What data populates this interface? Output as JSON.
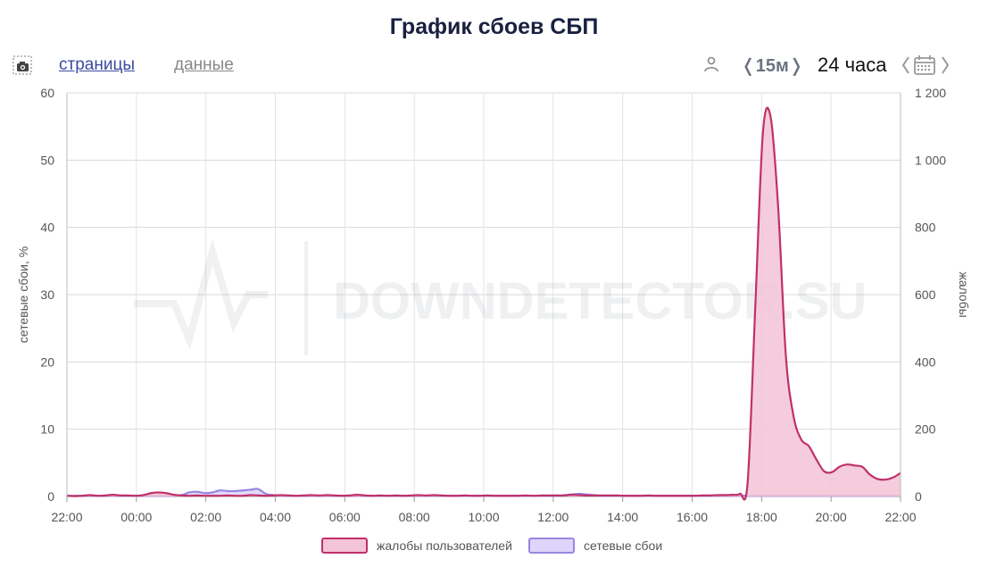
{
  "header": {
    "title": "График сбоев СБП"
  },
  "toolbar": {
    "camera_icon": "camera-icon",
    "link_pages": "страницы",
    "link_data": "данные",
    "user_icon": "user-icon",
    "interval": "❬15м❭",
    "range": "24 часа",
    "calendar_icon": "calendar-icon"
  },
  "watermark": "DOWNDETECTOR.SU",
  "colors": {
    "complaints": "#c0306a",
    "complaints_fill": "#f3c3d6",
    "network": "#9a86e0",
    "network_fill": "#ddd5fa"
  },
  "chart_data": {
    "type": "area",
    "xlabel": "",
    "ylabel_left": "сетевые сбои, %",
    "ylabel_right": "жалобы",
    "x_ticks": [
      "22:00",
      "00:00",
      "02:00",
      "04:00",
      "06:00",
      "08:00",
      "10:00",
      "12:00",
      "14:00",
      "16:00",
      "18:00",
      "20:00",
      "22:00"
    ],
    "ylim_left": [
      0,
      60
    ],
    "yticks_left": [
      "0",
      "10",
      "20",
      "30",
      "40",
      "50",
      "60"
    ],
    "ylim_right": [
      0,
      1200
    ],
    "yticks_right": [
      "0",
      "200",
      "400",
      "600",
      "800",
      "1 000",
      "1 200"
    ],
    "grid": true,
    "legend_position": "bottom",
    "series": [
      {
        "name": "жалобы пользователей",
        "axis": "right",
        "points": [
          [
            0,
            2
          ],
          [
            0.5,
            1
          ],
          [
            1,
            2
          ],
          [
            1.5,
            4
          ],
          [
            2,
            2
          ],
          [
            2.5,
            3
          ],
          [
            3,
            5
          ],
          [
            3.5,
            3
          ],
          [
            4,
            3
          ],
          [
            4.5,
            2
          ],
          [
            5,
            4
          ],
          [
            5.5,
            10
          ],
          [
            6,
            12
          ],
          [
            6.5,
            10
          ],
          [
            7,
            5
          ],
          [
            7.5,
            3
          ],
          [
            8,
            2
          ],
          [
            8.5,
            3
          ],
          [
            9,
            2
          ],
          [
            9.5,
            2
          ],
          [
            10,
            2
          ],
          [
            10.5,
            3
          ],
          [
            11,
            2
          ],
          [
            11.5,
            2
          ],
          [
            12,
            4
          ],
          [
            12.5,
            3
          ],
          [
            13,
            2
          ],
          [
            13.5,
            3
          ],
          [
            14,
            4
          ],
          [
            14.5,
            3
          ],
          [
            15,
            2
          ],
          [
            15.5,
            3
          ],
          [
            16,
            4
          ],
          [
            16.5,
            3
          ],
          [
            17,
            4
          ],
          [
            17.5,
            3
          ],
          [
            18,
            2
          ],
          [
            18.5,
            3
          ],
          [
            19,
            5
          ],
          [
            19.5,
            3
          ],
          [
            20,
            2
          ],
          [
            20.5,
            3
          ],
          [
            21,
            2
          ],
          [
            21.5,
            3
          ],
          [
            22,
            2
          ],
          [
            22.5,
            3
          ],
          [
            23,
            4
          ],
          [
            23.5,
            3
          ],
          [
            24,
            4
          ],
          [
            24.5,
            3
          ],
          [
            25,
            2
          ],
          [
            25.5,
            2
          ],
          [
            26,
            3
          ],
          [
            26.5,
            2
          ],
          [
            27,
            2
          ],
          [
            27.5,
            3
          ],
          [
            28,
            2
          ],
          [
            28.5,
            2
          ],
          [
            29,
            2
          ],
          [
            29.5,
            2
          ],
          [
            30,
            3
          ],
          [
            30.5,
            2
          ],
          [
            31,
            3
          ],
          [
            31.5,
            3
          ],
          [
            32,
            3
          ],
          [
            32.5,
            3
          ],
          [
            33,
            5
          ],
          [
            33.5,
            4
          ],
          [
            34,
            3
          ],
          [
            34.5,
            3
          ],
          [
            35,
            3
          ],
          [
            35.5,
            3
          ],
          [
            36,
            3
          ],
          [
            36.5,
            2
          ],
          [
            37,
            2
          ],
          [
            37.5,
            2
          ],
          [
            38,
            3
          ],
          [
            38.5,
            2
          ],
          [
            39,
            2
          ],
          [
            39.5,
            2
          ],
          [
            40,
            2
          ],
          [
            40.5,
            2
          ],
          [
            41,
            2
          ],
          [
            41.5,
            3
          ],
          [
            42,
            3
          ],
          [
            42.5,
            4
          ],
          [
            43,
            4
          ],
          [
            43.5,
            5
          ],
          [
            44,
            8
          ],
          [
            44.5,
            40
          ],
          [
            45,
            560
          ],
          [
            45.5,
            1080
          ],
          [
            46,
            1130
          ],
          [
            46.5,
            860
          ],
          [
            47,
            420
          ],
          [
            47.5,
            240
          ],
          [
            48,
            170
          ],
          [
            48.5,
            150
          ],
          [
            49,
            110
          ],
          [
            49.5,
            75
          ],
          [
            50,
            72
          ],
          [
            50.5,
            88
          ],
          [
            51,
            95
          ],
          [
            51.5,
            92
          ],
          [
            52,
            88
          ],
          [
            52.5,
            65
          ],
          [
            53,
            52
          ],
          [
            53.5,
            50
          ],
          [
            54,
            56
          ],
          [
            54.5,
            70
          ]
        ]
      },
      {
        "name": "сетевые сбои",
        "axis": "left",
        "points": [
          [
            0,
            0.1
          ],
          [
            1,
            0.1
          ],
          [
            2,
            0.1
          ],
          [
            3,
            0.1
          ],
          [
            4,
            0.1
          ],
          [
            5,
            0.1
          ],
          [
            6,
            0.1
          ],
          [
            7,
            0.1
          ],
          [
            7.5,
            0.2
          ],
          [
            8,
            0.6
          ],
          [
            8.5,
            0.7
          ],
          [
            9,
            0.5
          ],
          [
            9.5,
            0.6
          ],
          [
            10,
            0.9
          ],
          [
            10.5,
            0.8
          ],
          [
            11,
            0.8
          ],
          [
            11.5,
            0.9
          ],
          [
            12,
            1.0
          ],
          [
            12.5,
            1.1
          ],
          [
            13,
            0.4
          ],
          [
            13.5,
            0.2
          ],
          [
            14,
            0.1
          ],
          [
            15,
            0.1
          ],
          [
            16,
            0.1
          ],
          [
            17,
            0.1
          ],
          [
            18,
            0.1
          ],
          [
            19,
            0.1
          ],
          [
            20,
            0.1
          ],
          [
            21,
            0.1
          ],
          [
            22,
            0.1
          ],
          [
            23,
            0.1
          ],
          [
            24,
            0.1
          ],
          [
            25,
            0.1
          ],
          [
            26,
            0.1
          ],
          [
            27,
            0.1
          ],
          [
            28,
            0.1
          ],
          [
            29,
            0.1
          ],
          [
            30,
            0.1
          ],
          [
            31,
            0.1
          ],
          [
            32,
            0.1
          ],
          [
            33,
            0.3
          ],
          [
            33.5,
            0.4
          ],
          [
            34,
            0.3
          ],
          [
            35,
            0.1
          ],
          [
            36,
            0.1
          ],
          [
            37,
            0.1
          ],
          [
            38,
            0.1
          ],
          [
            39,
            0.1
          ],
          [
            40,
            0.1
          ],
          [
            41,
            0.1
          ],
          [
            42,
            0.1
          ],
          [
            43,
            0.1
          ],
          [
            44,
            0.1
          ],
          [
            45,
            0.1
          ],
          [
            46,
            0.1
          ],
          [
            47,
            0.1
          ],
          [
            48,
            0.1
          ],
          [
            49,
            0.1
          ],
          [
            50,
            0.1
          ],
          [
            51,
            0.1
          ],
          [
            52,
            0.1
          ],
          [
            53,
            0.1
          ],
          [
            54,
            0.1
          ],
          [
            54.5,
            0.1
          ]
        ]
      }
    ]
  }
}
